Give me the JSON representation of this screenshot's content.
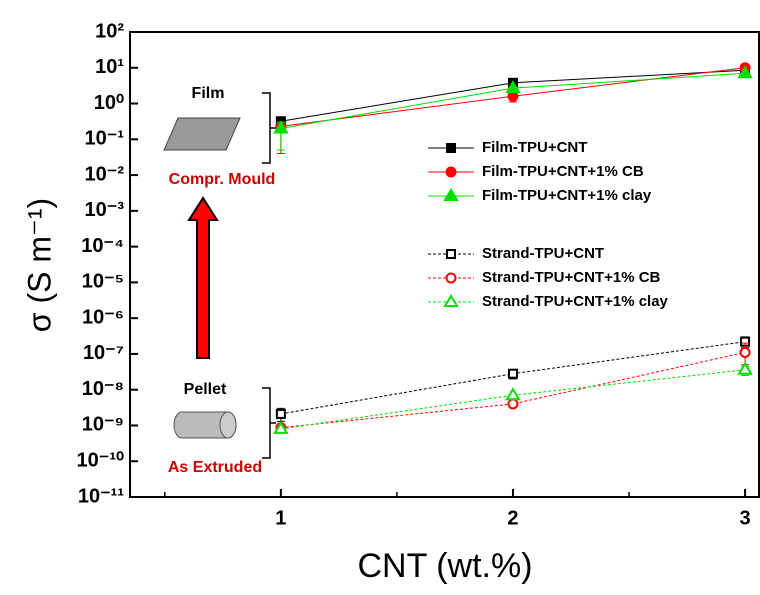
{
  "chart_data": {
    "type": "line",
    "x_label": "CNT (wt.%)",
    "y_label": "σ (S m⁻¹)",
    "log_y": true,
    "xlim": [
      0.35,
      3.06
    ],
    "xticks": [
      1,
      2,
      3
    ],
    "xminor": [
      0.5,
      1.5,
      2.5
    ],
    "ylim": [
      1e-11,
      100
    ],
    "yticks": [
      {
        "value": 100,
        "label": "10²"
      },
      {
        "value": 10,
        "label": "10¹"
      },
      {
        "value": 1,
        "label": "10⁰"
      },
      {
        "value": 0.1,
        "label": "10⁻¹"
      },
      {
        "value": 0.01,
        "label": "10⁻²"
      },
      {
        "value": 0.001,
        "label": "10⁻³"
      },
      {
        "value": 0.0001,
        "label": "10⁻⁴"
      },
      {
        "value": 1e-05,
        "label": "10⁻⁵"
      },
      {
        "value": 1e-06,
        "label": "10⁻⁶"
      },
      {
        "value": 1e-07,
        "label": "10⁻⁷"
      },
      {
        "value": 1e-08,
        "label": "10⁻⁸"
      },
      {
        "value": 1e-09,
        "label": "10⁻⁹"
      },
      {
        "value": 1e-10,
        "label": "10⁻¹⁰"
      },
      {
        "value": 1e-11,
        "label": "10⁻¹¹"
      }
    ],
    "x": [
      1,
      2,
      3
    ],
    "series": [
      {
        "name": "Film-TPU+CNT",
        "color": "#000000",
        "line_style": "solid",
        "marker": "square",
        "filled": true,
        "values": [
          0.32,
          3.8,
          8.5
        ],
        "err_lo": [
          0.2,
          3,
          null
        ],
        "err_hi": [
          0.4,
          4.5,
          null
        ]
      },
      {
        "name": "Film-TPU+CNT+1% CB",
        "color": "#ff0000",
        "line_style": "solid",
        "marker": "circle",
        "filled": true,
        "values": [
          0.23,
          1.6,
          10
        ],
        "err_lo": [
          0.04,
          1.1,
          null
        ],
        "err_hi": [
          0.3,
          2.2,
          null
        ]
      },
      {
        "name": "Film-TPU+CNT+1% clay",
        "color": "#00dd00",
        "line_style": "solid",
        "marker": "triangle",
        "filled": true,
        "values": [
          0.2,
          2.7,
          7
        ],
        "err_lo": [
          0.05,
          null,
          null
        ],
        "err_hi": [
          0.3,
          null,
          null
        ]
      },
      {
        "name": "Strand-TPU+CNT",
        "color": "#000000",
        "line_style": "dotted",
        "marker": "square",
        "filled": false,
        "values": [
          2.1e-09,
          2.8e-08,
          2.2e-07
        ],
        "err_lo": [
          1.3e-09,
          2e-08,
          1.5e-07
        ],
        "err_hi": [
          3e-09,
          3.5e-08,
          3e-07
        ]
      },
      {
        "name": "Strand-TPU+CNT+1% CB",
        "color": "#ff0000",
        "line_style": "dotted",
        "marker": "circle",
        "filled": false,
        "values": [
          8.7e-10,
          4e-09,
          1.1e-07
        ],
        "err_lo": [
          null,
          null,
          5e-08
        ],
        "err_hi": [
          null,
          null,
          2e-07
        ]
      },
      {
        "name": "Strand-TPU+CNT+1% clay",
        "color": "#00dd00",
        "line_style": "dotted",
        "marker": "triangle",
        "filled": false,
        "values": [
          8e-10,
          7e-09,
          3.6e-08
        ],
        "err_lo": [
          null,
          null,
          2.5e-08
        ],
        "err_hi": [
          null,
          null,
          4.5e-08
        ]
      }
    ],
    "annotations": [
      "Film",
      "Compr. Mould",
      "Pellet",
      "As Extruded"
    ]
  }
}
